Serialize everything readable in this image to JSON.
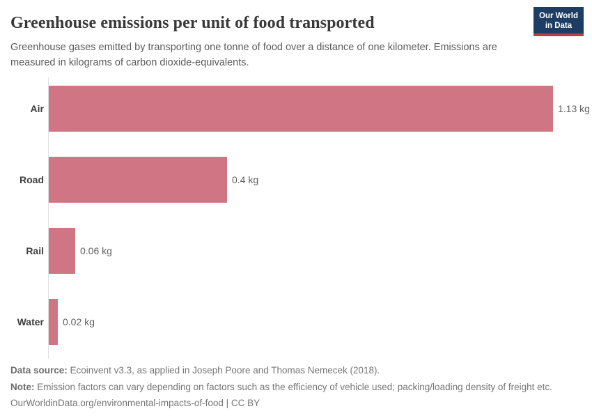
{
  "header": {
    "title": "Greenhouse emissions per unit of food transported",
    "subtitle": "Greenhouse gases emitted by transporting one tonne of food over a distance of one kilometer. Emissions are measured in kilograms of carbon dioxide-equivalents.",
    "logo": {
      "line1": "Our World",
      "line2": "in Data"
    }
  },
  "chart_data": {
    "type": "bar",
    "orientation": "horizontal",
    "title": "Greenhouse emissions per unit of food transported",
    "categories": [
      "Air",
      "Road",
      "Rail",
      "Water"
    ],
    "values": [
      1.13,
      0.4,
      0.06,
      0.02
    ],
    "value_labels": [
      "1.13 kg",
      "0.4 kg",
      "0.06 kg",
      "0.02 kg"
    ],
    "unit": "kg",
    "xlim": [
      0,
      1.13
    ],
    "grid": false,
    "legend": "none",
    "bar_color": "#cf7583"
  },
  "colors": {
    "bar": "#cf7583",
    "logo_bg": "#1d3d63",
    "logo_stripe": "#bb3b46",
    "axis_line": "#e0e0e0",
    "title_text": "#383838",
    "subtitle_text": "#5a5a5a",
    "footer_text": "#757575"
  },
  "footer": {
    "data_source_label": "Data source:",
    "data_source_text": " Ecoinvent v3.3, as applied in Joseph Poore and Thomas Nemecek (2018).",
    "note_label": "Note:",
    "note_text": " Emission factors can vary depending on factors such as the efficiency of vehicle used; packing/loading density of freight etc.",
    "url_text": "OurWorldinData.org/environmental-impacts-of-food",
    "license_separator": " | ",
    "license_text": "CC BY"
  }
}
